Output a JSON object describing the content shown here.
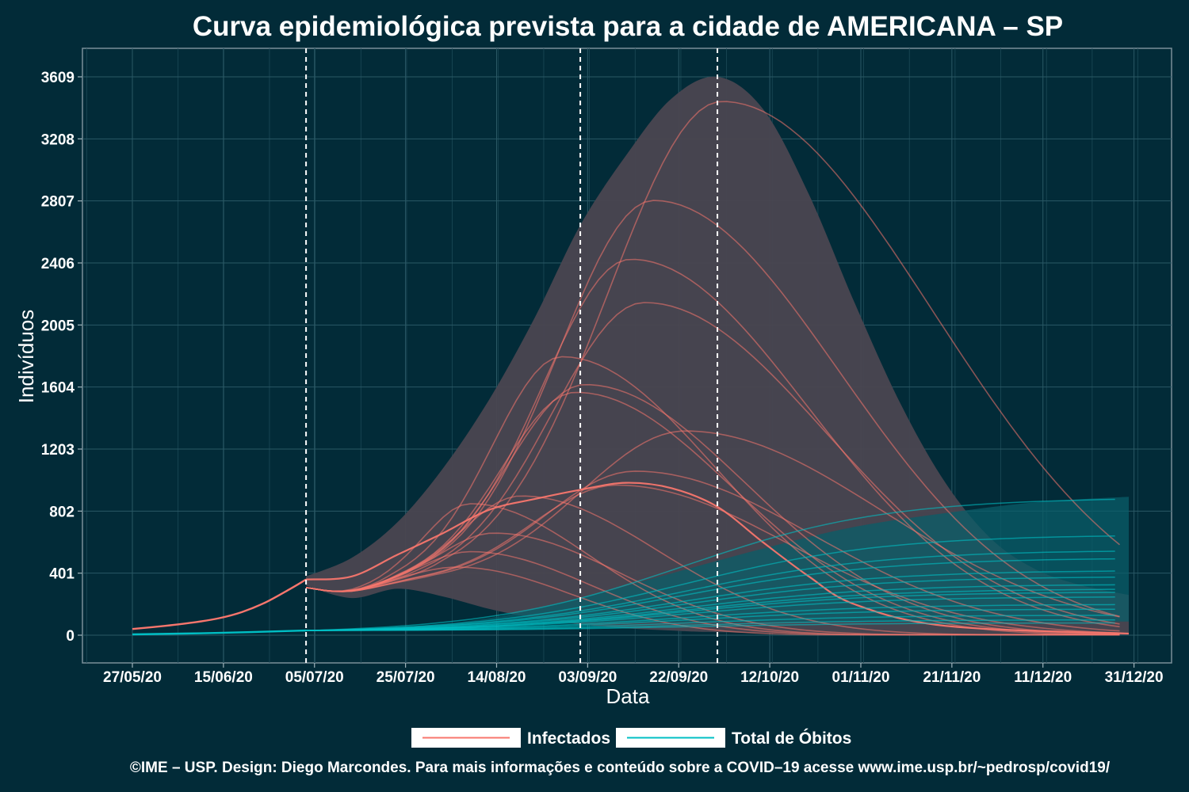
{
  "chart_data": {
    "type": "line",
    "title": "Curva epidemiológica prevista para a cidade de AMERICANA – SP",
    "xlabel": "Data",
    "ylabel": "Indivíduos",
    "x_range": [
      "2020-05-27",
      "2020-12-31"
    ],
    "ylim": [
      0,
      3609
    ],
    "x_ticks": [
      "27/05/20",
      "15/06/20",
      "05/07/20",
      "25/07/20",
      "14/08/20",
      "03/09/20",
      "22/09/20",
      "12/10/20",
      "01/11/20",
      "21/11/20",
      "11/12/20",
      "31/12/20"
    ],
    "y_ticks": [
      "0",
      "401",
      "802",
      "1203",
      "1604",
      "2005",
      "2406",
      "2807",
      "3208",
      "3609"
    ],
    "grid": true,
    "legend_position": "bottom",
    "vertical_markers": [
      "2020-07-04",
      "2020-09-02",
      "2020-10-02"
    ],
    "colors": {
      "background": "#022b38",
      "infectados": "#f8766d",
      "obitos": "#00bfc4",
      "band_infectados": "#4a4650",
      "band_obitos": "#0a5d68",
      "marker": "#ffffff"
    },
    "series": [
      {
        "name": "Infectados",
        "color": "#f8766d",
        "observed": [
          [
            "2020-05-27",
            40
          ],
          [
            "2020-06-03",
            60
          ],
          [
            "2020-06-10",
            85
          ],
          [
            "2020-06-15",
            110
          ],
          [
            "2020-06-20",
            150
          ],
          [
            "2020-06-25",
            210
          ],
          [
            "2020-06-30",
            290
          ],
          [
            "2020-07-04",
            360
          ]
        ],
        "main_projection": [
          [
            "2020-07-04",
            360
          ],
          [
            "2020-07-14",
            380
          ],
          [
            "2020-07-24",
            520
          ],
          [
            "2020-08-03",
            660
          ],
          [
            "2020-08-13",
            810
          ],
          [
            "2020-08-23",
            880
          ],
          [
            "2020-09-02",
            940
          ],
          [
            "2020-09-12",
            985
          ],
          [
            "2020-09-22",
            950
          ],
          [
            "2020-10-02",
            830
          ],
          [
            "2020-10-12",
            600
          ],
          [
            "2020-10-22",
            380
          ],
          [
            "2020-11-01",
            200
          ],
          [
            "2020-11-21",
            60
          ],
          [
            "2020-12-31",
            10
          ]
        ],
        "scenario_peaks": [
          {
            "peak_date": "2020-10-03",
            "peak": 3450
          },
          {
            "peak_date": "2020-09-18",
            "peak": 2810
          },
          {
            "peak_date": "2020-09-13",
            "peak": 2430
          },
          {
            "peak_date": "2020-09-16",
            "peak": 2150
          },
          {
            "peak_date": "2020-08-29",
            "peak": 1800
          },
          {
            "peak_date": "2020-09-03",
            "peak": 1620
          },
          {
            "peak_date": "2020-09-01",
            "peak": 1570
          },
          {
            "peak_date": "2020-09-25",
            "peak": 1320
          },
          {
            "peak_date": "2020-09-14",
            "peak": 1060
          },
          {
            "peak_date": "2020-09-10",
            "peak": 970
          },
          {
            "peak_date": "2020-08-20",
            "peak": 900
          },
          {
            "peak_date": "2020-08-09",
            "peak": 850
          },
          {
            "peak_date": "2020-08-14",
            "peak": 660
          },
          {
            "peak_date": "2020-08-09",
            "peak": 540
          },
          {
            "peak_date": "2020-08-06",
            "peak": 440
          }
        ],
        "band_upper": [
          [
            "2020-07-04",
            380
          ],
          [
            "2020-07-14",
            500
          ],
          [
            "2020-07-24",
            730
          ],
          [
            "2020-08-03",
            1080
          ],
          [
            "2020-08-13",
            1520
          ],
          [
            "2020-08-23",
            2050
          ],
          [
            "2020-09-02",
            2650
          ],
          [
            "2020-09-12",
            3100
          ],
          [
            "2020-09-22",
            3470
          ],
          [
            "2020-10-02",
            3609
          ],
          [
            "2020-10-12",
            3400
          ],
          [
            "2020-10-22",
            2850
          ],
          [
            "2020-11-01",
            2150
          ],
          [
            "2020-11-11",
            1500
          ],
          [
            "2020-11-21",
            980
          ],
          [
            "2020-12-01",
            620
          ],
          [
            "2020-12-11",
            420
          ],
          [
            "2020-12-21",
            320
          ],
          [
            "2020-12-31",
            260
          ]
        ],
        "band_lower": [
          [
            "2020-07-04",
            320
          ],
          [
            "2020-07-14",
            240
          ],
          [
            "2020-07-24",
            300
          ],
          [
            "2020-08-03",
            250
          ],
          [
            "2020-08-13",
            170
          ],
          [
            "2020-08-23",
            110
          ],
          [
            "2020-09-02",
            70
          ],
          [
            "2020-09-12",
            45
          ],
          [
            "2020-09-22",
            30
          ],
          [
            "2020-10-02",
            20
          ],
          [
            "2020-11-01",
            8
          ],
          [
            "2020-12-31",
            2
          ]
        ]
      },
      {
        "name": "Total de Óbitos",
        "color": "#00bfc4",
        "observed": [
          [
            "2020-05-27",
            5
          ],
          [
            "2020-06-15",
            15
          ],
          [
            "2020-07-04",
            30
          ]
        ],
        "scenario_finals": [
          890,
          650,
          550,
          500,
          420,
          380,
          330,
          300,
          280,
          250,
          200,
          170,
          130,
          100,
          80
        ],
        "band_upper": [
          [
            "2020-07-04",
            32
          ],
          [
            "2020-07-24",
            52
          ],
          [
            "2020-08-13",
            110
          ],
          [
            "2020-09-02",
            240
          ],
          [
            "2020-09-22",
            400
          ],
          [
            "2020-10-12",
            560
          ],
          [
            "2020-11-01",
            700
          ],
          [
            "2020-11-21",
            790
          ],
          [
            "2020-12-11",
            860
          ],
          [
            "2020-12-31",
            895
          ]
        ],
        "band_lower": [
          [
            "2020-07-04",
            28
          ],
          [
            "2020-07-24",
            45
          ],
          [
            "2020-08-13",
            70
          ],
          [
            "2020-09-02",
            80
          ],
          [
            "2020-10-02",
            85
          ],
          [
            "2020-11-01",
            86
          ],
          [
            "2020-12-31",
            88
          ]
        ]
      }
    ]
  },
  "legend": {
    "infectados": "Infectados",
    "obitos": "Total de Óbitos"
  },
  "footer": "©IME – USP. Design: Diego Marcondes. Para mais informações e conteúdo sobre a COVID–19 acesse www.ime.usp.br/~pedrosp/covid19/"
}
